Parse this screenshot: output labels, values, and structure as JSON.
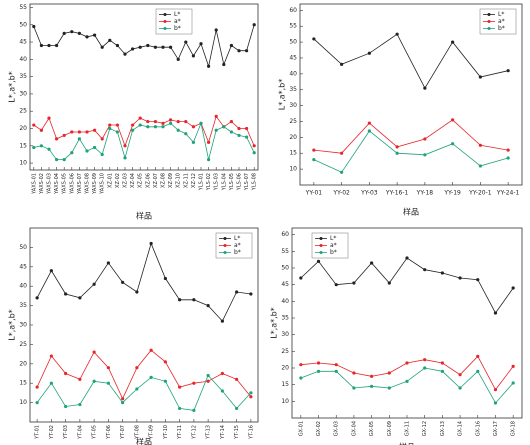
{
  "chart_data": [
    {
      "type": "line",
      "xlabel": "样品",
      "ylabel": "L*,a*,b*",
      "legend": "top-center",
      "categories": [
        "YAXS-01",
        "YAXS-02",
        "YAXS-03",
        "YAXS-04",
        "YAXS-05",
        "YAXS-06",
        "YAXS-07",
        "YAXS-08",
        "YAXS-09",
        "YAXS-10",
        "XZ-01",
        "XZ-02",
        "XZ-03",
        "XZ-04",
        "XZ-05",
        "XZ-06",
        "XZ-07",
        "XZ-08",
        "XZ-09",
        "XZ-10",
        "XZ-11",
        "XZ-12",
        "YLS-01",
        "YLS-02",
        "YLS-03",
        "YLS-04",
        "YLS-05",
        "YLS-06",
        "YLS-07",
        "YLS-08"
      ],
      "series": [
        {
          "name": "L*",
          "color": "#222222",
          "values": [
            49.5,
            44,
            44,
            44,
            47.5,
            48,
            47.5,
            46.5,
            47,
            43.5,
            45.5,
            44,
            41.5,
            43,
            43.5,
            44,
            43.5,
            43.5,
            43.5,
            40,
            45,
            41,
            44.5,
            38,
            48.5,
            38.5,
            44,
            42.5,
            42.5,
            50
          ]
        },
        {
          "name": "a*",
          "color": "#e8262a",
          "values": [
            21,
            19.5,
            23,
            17,
            18,
            19,
            19,
            19,
            19.5,
            17,
            21,
            21,
            15,
            21,
            23,
            22,
            22,
            21.5,
            22.5,
            22,
            22,
            20.5,
            21.5,
            16,
            23.5,
            20.5,
            22,
            20,
            20,
            15
          ]
        },
        {
          "name": "b*",
          "color": "#1fa37a",
          "values": [
            14.5,
            15,
            14,
            11,
            11,
            13,
            17,
            13.5,
            14.5,
            12.5,
            20,
            19,
            11.5,
            19.5,
            21,
            20.5,
            20.5,
            20.5,
            21.5,
            19.5,
            18.5,
            16,
            21.5,
            11,
            19.5,
            20.5,
            19,
            18,
            17.5,
            13
          ]
        }
      ],
      "ylim": [
        8,
        56
      ],
      "yticks": [
        10,
        15,
        20,
        25,
        30,
        35,
        40,
        45,
        50,
        55
      ]
    },
    {
      "type": "line",
      "xlabel": "样品",
      "ylabel": "L*,a*,b*",
      "legend": "top-right",
      "categories": [
        "YY-01",
        "YY-02",
        "YY-03",
        "YY-16-1",
        "YY-18",
        "YY-19",
        "YY-20-1",
        "YY-24-1"
      ],
      "series": [
        {
          "name": "L*",
          "color": "#222222",
          "values": [
            51,
            43,
            46.5,
            52.5,
            35.5,
            50,
            39,
            41
          ]
        },
        {
          "name": "a*",
          "color": "#e8262a",
          "values": [
            16,
            15,
            24.5,
            17,
            19.5,
            25.5,
            17.5,
            16
          ]
        },
        {
          "name": "b*",
          "color": "#1fa37a",
          "values": [
            13,
            9,
            22,
            15,
            14.5,
            18,
            11,
            13.5
          ]
        }
      ],
      "ylim": [
        5,
        62
      ],
      "yticks": [
        10,
        15,
        20,
        25,
        30,
        35,
        40,
        45,
        50,
        55,
        60
      ]
    },
    {
      "type": "line",
      "xlabel": "样品",
      "ylabel": "L*,a*,b*",
      "legend": "top-right",
      "categories": [
        "YT-01",
        "YT-02",
        "YT-03",
        "YT-04",
        "YT-05",
        "YT-06",
        "YT-07",
        "YT-08",
        "YT-09",
        "YT-10",
        "YT-11",
        "YT-12",
        "YT-13",
        "YT-14",
        "YT-15",
        "YT-16"
      ],
      "series": [
        {
          "name": "L*",
          "color": "#222222",
          "values": [
            37,
            44,
            38,
            37,
            40.5,
            46,
            41,
            38.5,
            51,
            42,
            36.5,
            36.5,
            35,
            31,
            38.5,
            38
          ]
        },
        {
          "name": "a*",
          "color": "#e8262a",
          "values": [
            14,
            22,
            17.5,
            16,
            23,
            19,
            11,
            19,
            23.5,
            20.5,
            14,
            15,
            15.5,
            17.5,
            16,
            11.5
          ]
        },
        {
          "name": "b*",
          "color": "#1fa37a",
          "values": [
            10,
            15,
            9,
            9.5,
            15.5,
            15,
            10,
            13.5,
            16.5,
            15.5,
            8.5,
            8,
            17,
            13,
            8.5,
            12.5
          ]
        }
      ],
      "ylim": [
        5,
        55
      ],
      "yticks": [
        10,
        15,
        20,
        25,
        30,
        35,
        40,
        45,
        50
      ]
    },
    {
      "type": "line",
      "xlabel": "样品",
      "ylabel": "L*,a*,b*",
      "legend": "top-left",
      "categories": [
        "GX-01",
        "GX-02",
        "GX-03",
        "GX-04",
        "GX-05",
        "GX-09",
        "GX-11",
        "GX-12",
        "GX-13",
        "GX-14",
        "GX-16",
        "GX-17",
        "GX-18"
      ],
      "series": [
        {
          "name": "L*",
          "color": "#222222",
          "values": [
            47,
            52,
            45,
            45.5,
            51.5,
            45.5,
            53,
            49.5,
            48.5,
            47,
            46.5,
            36.5,
            44
          ]
        },
        {
          "name": "a*",
          "color": "#e8262a",
          "values": [
            21,
            21.5,
            21,
            18.5,
            17.5,
            18.5,
            21.5,
            22.5,
            21.5,
            18,
            23.5,
            13.5,
            20.5
          ]
        },
        {
          "name": "b*",
          "color": "#1fa37a",
          "values": [
            17,
            19,
            19,
            14,
            14.5,
            14,
            16,
            20,
            19,
            14,
            19,
            9.5,
            15.5
          ]
        }
      ],
      "ylim": [
        5,
        62
      ],
      "yticks": [
        10,
        15,
        20,
        25,
        30,
        35,
        40,
        45,
        50,
        55,
        60
      ]
    }
  ]
}
